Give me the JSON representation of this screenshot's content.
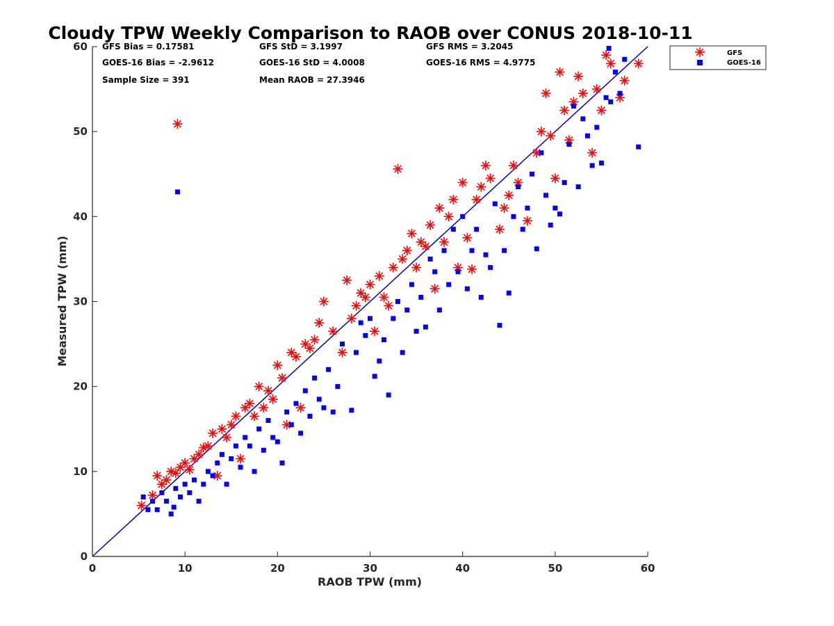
{
  "chart_data": {
    "type": "scatter",
    "title": "Cloudy TPW Weekly Comparison to RAOB over CONUS 2018-10-11",
    "xlabel": "RAOB TPW (mm)",
    "ylabel": "Measured TPW (mm)",
    "xlim": [
      0,
      60
    ],
    "ylim": [
      0,
      60
    ],
    "xticks": [
      0,
      10,
      20,
      30,
      40,
      50,
      60
    ],
    "yticks": [
      0,
      10,
      20,
      30,
      40,
      50,
      60
    ],
    "grid": false,
    "legend_position": "outside-top-right",
    "reference_line": {
      "x": [
        0,
        60
      ],
      "y": [
        0,
        60
      ],
      "color": "#0000cc"
    },
    "stats": [
      {
        "label": "GFS Bias = 0.17581"
      },
      {
        "label": "GFS StD = 3.1997"
      },
      {
        "label": "GFS RMS = 3.2045"
      },
      {
        "label": "GOES-16 Bias = -2.9612"
      },
      {
        "label": "GOES-16 StD = 4.0008"
      },
      {
        "label": "GOES-16 RMS = 4.9775"
      },
      {
        "label": "Sample Size = 391"
      },
      {
        "label": "Mean RAOB = 27.3946"
      }
    ],
    "series": [
      {
        "name": "GFS",
        "marker": "asterisk",
        "color": "#ff0000",
        "points": [
          [
            5.3,
            6.0
          ],
          [
            6.5,
            7.2
          ],
          [
            7.0,
            9.5
          ],
          [
            7.5,
            8.5
          ],
          [
            8.0,
            9.0
          ],
          [
            8.5,
            10.0
          ],
          [
            9.0,
            9.8
          ],
          [
            9.2,
            50.9
          ],
          [
            9.5,
            10.5
          ],
          [
            10.0,
            11.0
          ],
          [
            10.5,
            10.2
          ],
          [
            11.0,
            11.5
          ],
          [
            11.5,
            12.0
          ],
          [
            12.0,
            12.8
          ],
          [
            12.5,
            13.0
          ],
          [
            13.0,
            14.5
          ],
          [
            13.5,
            9.5
          ],
          [
            14.0,
            15.0
          ],
          [
            14.5,
            14.0
          ],
          [
            15.0,
            15.5
          ],
          [
            15.5,
            16.5
          ],
          [
            16.0,
            11.5
          ],
          [
            16.5,
            17.5
          ],
          [
            17.0,
            18.0
          ],
          [
            17.5,
            16.5
          ],
          [
            18.0,
            20.0
          ],
          [
            18.5,
            17.5
          ],
          [
            19.0,
            19.5
          ],
          [
            19.5,
            18.5
          ],
          [
            20.0,
            22.5
          ],
          [
            20.5,
            21.0
          ],
          [
            21.0,
            15.5
          ],
          [
            21.5,
            24.0
          ],
          [
            22.0,
            23.5
          ],
          [
            22.5,
            17.5
          ],
          [
            23.0,
            25.0
          ],
          [
            23.5,
            24.5
          ],
          [
            24.0,
            25.5
          ],
          [
            24.5,
            27.5
          ],
          [
            25.0,
            30.0
          ],
          [
            26.0,
            26.5
          ],
          [
            27.0,
            24.0
          ],
          [
            27.5,
            32.5
          ],
          [
            28.0,
            28.0
          ],
          [
            28.5,
            29.5
          ],
          [
            29.0,
            31.0
          ],
          [
            29.5,
            30.5
          ],
          [
            30.0,
            32.0
          ],
          [
            30.5,
            26.5
          ],
          [
            31.0,
            33.0
          ],
          [
            31.5,
            30.5
          ],
          [
            32.0,
            29.5
          ],
          [
            32.5,
            34.0
          ],
          [
            33.0,
            45.6
          ],
          [
            33.5,
            35.0
          ],
          [
            34.0,
            36.0
          ],
          [
            34.5,
            38.0
          ],
          [
            35.0,
            34.0
          ],
          [
            35.5,
            37.0
          ],
          [
            36.0,
            36.5
          ],
          [
            36.5,
            39.0
          ],
          [
            37.0,
            31.5
          ],
          [
            37.5,
            41.0
          ],
          [
            38.0,
            37.0
          ],
          [
            38.5,
            40.0
          ],
          [
            39.0,
            42.0
          ],
          [
            39.5,
            34.0
          ],
          [
            40.0,
            44.0
          ],
          [
            40.5,
            37.5
          ],
          [
            41.0,
            33.8
          ],
          [
            41.5,
            42.0
          ],
          [
            42.0,
            43.5
          ],
          [
            42.5,
            46.0
          ],
          [
            43.0,
            44.5
          ],
          [
            44.0,
            38.5
          ],
          [
            44.5,
            41.0
          ],
          [
            45.0,
            42.5
          ],
          [
            45.5,
            46.0
          ],
          [
            46.0,
            44.0
          ],
          [
            47.0,
            39.5
          ],
          [
            48.0,
            47.5
          ],
          [
            48.5,
            50.0
          ],
          [
            49.0,
            54.5
          ],
          [
            49.5,
            49.5
          ],
          [
            50.0,
            44.5
          ],
          [
            50.5,
            57.0
          ],
          [
            51.0,
            52.5
          ],
          [
            51.5,
            49.0
          ],
          [
            52.0,
            53.5
          ],
          [
            52.5,
            56.5
          ],
          [
            53.0,
            54.5
          ],
          [
            54.0,
            47.5
          ],
          [
            54.5,
            55.0
          ],
          [
            55.0,
            52.5
          ],
          [
            55.5,
            59.0
          ],
          [
            56.0,
            58.0
          ],
          [
            57.0,
            54.0
          ],
          [
            57.5,
            56.0
          ],
          [
            59.0,
            58.0
          ]
        ]
      },
      {
        "name": "GOES-16",
        "marker": "square",
        "color": "#0000ff",
        "points": [
          [
            5.5,
            7.0
          ],
          [
            6.0,
            5.5
          ],
          [
            6.5,
            6.5
          ],
          [
            7.0,
            5.5
          ],
          [
            7.5,
            7.5
          ],
          [
            8.0,
            6.5
          ],
          [
            8.5,
            5.0
          ],
          [
            8.8,
            5.8
          ],
          [
            9.0,
            8.0
          ],
          [
            9.2,
            42.9
          ],
          [
            9.5,
            7.0
          ],
          [
            10.0,
            8.5
          ],
          [
            10.5,
            7.5
          ],
          [
            11.0,
            9.0
          ],
          [
            11.5,
            6.5
          ],
          [
            12.0,
            8.5
          ],
          [
            12.5,
            10.0
          ],
          [
            13.0,
            9.5
          ],
          [
            13.5,
            11.0
          ],
          [
            14.0,
            12.0
          ],
          [
            14.5,
            8.5
          ],
          [
            15.0,
            11.5
          ],
          [
            15.5,
            13.0
          ],
          [
            16.0,
            10.5
          ],
          [
            16.5,
            14.0
          ],
          [
            17.0,
            13.0
          ],
          [
            17.5,
            10.0
          ],
          [
            18.0,
            15.0
          ],
          [
            18.5,
            12.5
          ],
          [
            19.0,
            16.0
          ],
          [
            19.5,
            14.0
          ],
          [
            20.0,
            13.5
          ],
          [
            20.5,
            11.0
          ],
          [
            21.0,
            17.0
          ],
          [
            21.5,
            15.5
          ],
          [
            22.0,
            18.0
          ],
          [
            22.5,
            14.5
          ],
          [
            23.0,
            19.5
          ],
          [
            23.5,
            16.5
          ],
          [
            24.0,
            21.0
          ],
          [
            24.5,
            18.5
          ],
          [
            25.0,
            17.5
          ],
          [
            25.5,
            22.0
          ],
          [
            26.0,
            17.0
          ],
          [
            26.5,
            20.0
          ],
          [
            27.0,
            25.0
          ],
          [
            28.0,
            17.2
          ],
          [
            28.5,
            24.0
          ],
          [
            29.0,
            27.5
          ],
          [
            29.5,
            26.0
          ],
          [
            30.0,
            28.0
          ],
          [
            30.5,
            21.2
          ],
          [
            31.0,
            23.0
          ],
          [
            31.5,
            25.5
          ],
          [
            32.0,
            19.0
          ],
          [
            32.5,
            28.0
          ],
          [
            33.0,
            30.0
          ],
          [
            33.5,
            24.0
          ],
          [
            34.0,
            29.0
          ],
          [
            34.5,
            32.0
          ],
          [
            35.0,
            26.5
          ],
          [
            35.5,
            30.5
          ],
          [
            36.0,
            27.0
          ],
          [
            36.5,
            35.0
          ],
          [
            37.0,
            33.5
          ],
          [
            37.5,
            29.0
          ],
          [
            38.0,
            36.0
          ],
          [
            38.5,
            32.0
          ],
          [
            39.0,
            38.5
          ],
          [
            39.5,
            33.5
          ],
          [
            40.0,
            40.0
          ],
          [
            40.5,
            31.5
          ],
          [
            41.0,
            36.0
          ],
          [
            41.5,
            38.5
          ],
          [
            42.0,
            30.5
          ],
          [
            42.5,
            35.5
          ],
          [
            43.0,
            34.0
          ],
          [
            43.5,
            41.5
          ],
          [
            44.0,
            27.2
          ],
          [
            44.5,
            36.0
          ],
          [
            45.0,
            31.0
          ],
          [
            45.5,
            40.0
          ],
          [
            46.0,
            43.5
          ],
          [
            46.5,
            38.5
          ],
          [
            47.0,
            41.0
          ],
          [
            47.5,
            45.0
          ],
          [
            48.0,
            36.2
          ],
          [
            48.5,
            47.5
          ],
          [
            49.0,
            42.5
          ],
          [
            49.5,
            39.0
          ],
          [
            50.0,
            41.0
          ],
          [
            50.5,
            40.3
          ],
          [
            51.0,
            44.0
          ],
          [
            51.5,
            48.5
          ],
          [
            52.0,
            53.0
          ],
          [
            52.5,
            43.5
          ],
          [
            53.0,
            51.5
          ],
          [
            53.5,
            49.5
          ],
          [
            54.0,
            46.0
          ],
          [
            54.5,
            50.5
          ],
          [
            55.0,
            46.3
          ],
          [
            55.5,
            54.0
          ],
          [
            56.0,
            53.5
          ],
          [
            56.5,
            57.0
          ],
          [
            57.0,
            54.5
          ],
          [
            57.5,
            58.5
          ],
          [
            59.0,
            48.2
          ],
          [
            55.8,
            59.8
          ]
        ]
      }
    ]
  }
}
